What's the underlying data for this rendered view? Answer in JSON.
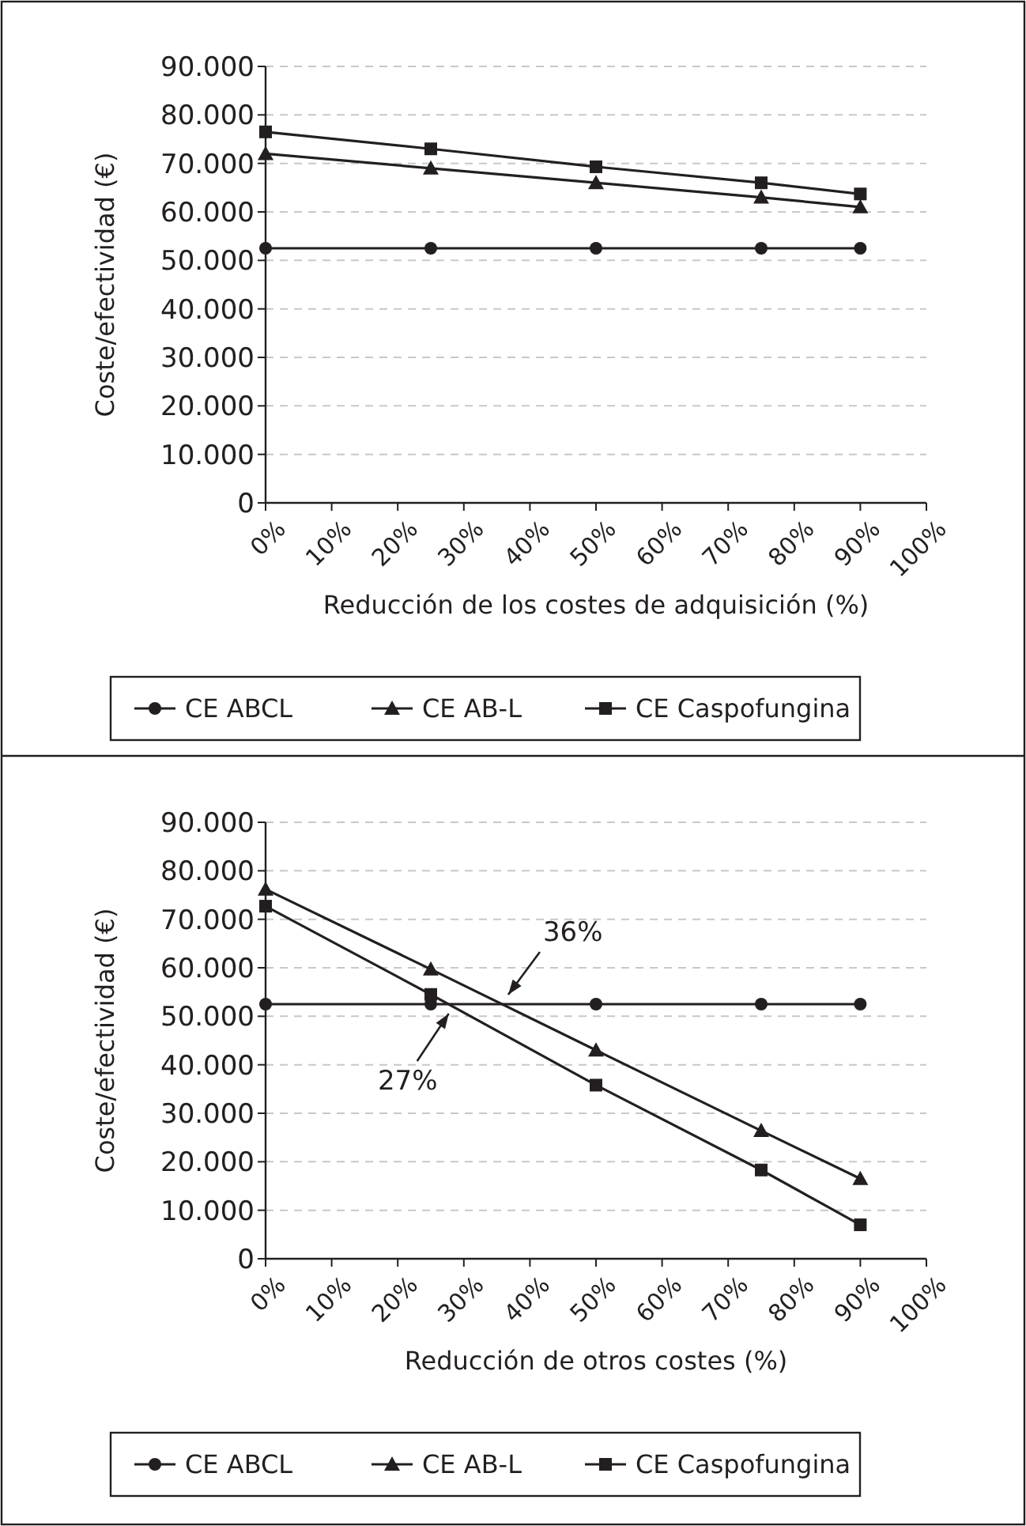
{
  "chart_data": [
    {
      "type": "line",
      "xlabel": "Reducción de los costes de adquisición (%)",
      "ylabel": "Coste/efectividad (€)",
      "x": [
        0,
        25,
        50,
        75,
        90
      ],
      "series": [
        {
          "name": "CE ABCL",
          "color": "#231f20",
          "marker": "circle",
          "values": [
            52500,
            52500,
            52500,
            52500,
            52500
          ]
        },
        {
          "name": "CE AB-L",
          "color": "#231f20",
          "marker": "triangle",
          "values": [
            72000,
            69000,
            66000,
            63000,
            61000
          ]
        },
        {
          "name": "CE Caspofungina",
          "color": "#231f20",
          "marker": "square",
          "values": [
            76500,
            73000,
            69300,
            66000,
            63700
          ]
        }
      ],
      "xlim": [
        0,
        100
      ],
      "xticks": [
        {
          "value": 0,
          "label": "0%"
        },
        {
          "value": 10,
          "label": "10%"
        },
        {
          "value": 20,
          "label": "20%"
        },
        {
          "value": 30,
          "label": "30%"
        },
        {
          "value": 40,
          "label": "40%"
        },
        {
          "value": 50,
          "label": "50%"
        },
        {
          "value": 60,
          "label": "60%"
        },
        {
          "value": 70,
          "label": "70%"
        },
        {
          "value": 80,
          "label": "80%"
        },
        {
          "value": 90,
          "label": "90%"
        },
        {
          "value": 100,
          "label": "100%"
        }
      ],
      "ylim": [
        0,
        90000
      ],
      "yticks": [
        0,
        {
          "value": 10000,
          "label": "10.000"
        },
        {
          "value": 20000,
          "label": "20.000"
        },
        {
          "value": 30000,
          "label": "30.000"
        },
        {
          "value": 40000,
          "label": "40.000"
        },
        {
          "value": 50000,
          "label": "50.000"
        },
        {
          "value": 60000,
          "label": "60.000"
        },
        {
          "value": 70000,
          "label": "70.000"
        },
        {
          "value": 80000,
          "label": "80.000"
        },
        {
          "value": 90000,
          "label": "90.000"
        }
      ],
      "grid": "y",
      "legend": "bottom",
      "line_style": "solid"
    },
    {
      "type": "line",
      "xlabel": "Reducción de otros costes (%)",
      "ylabel": "Coste/efectividad (€)",
      "x": [
        0,
        25,
        50,
        75,
        90
      ],
      "series": [
        {
          "name": "CE ABCL",
          "color": "#231f20",
          "marker": "circle",
          "values": [
            52500,
            52500,
            52500,
            52500,
            52500
          ]
        },
        {
          "name": "CE AB-L",
          "color": "#231f20",
          "marker": "triangle",
          "values": [
            76200,
            59700,
            43000,
            26400,
            16500
          ]
        },
        {
          "name": "CE Caspofungina",
          "color": "#231f20",
          "marker": "square",
          "values": [
            72700,
            54500,
            35800,
            18300,
            7000
          ]
        }
      ],
      "xlim": [
        0,
        100
      ],
      "xticks": [
        {
          "value": 0,
          "label": "0%"
        },
        {
          "value": 10,
          "label": "10%"
        },
        {
          "value": 20,
          "label": "20%"
        },
        {
          "value": 30,
          "label": "30%"
        },
        {
          "value": 40,
          "label": "40%"
        },
        {
          "value": 50,
          "label": "50%"
        },
        {
          "value": 60,
          "label": "60%"
        },
        {
          "value": 70,
          "label": "70%"
        },
        {
          "value": 80,
          "label": "80%"
        },
        {
          "value": 90,
          "label": "90%"
        },
        {
          "value": 100,
          "label": "100%"
        }
      ],
      "ylim": [
        0,
        90000
      ],
      "yticks": [
        0,
        {
          "value": 10000,
          "label": "10.000"
        },
        {
          "value": 20000,
          "label": "20.000"
        },
        {
          "value": 30000,
          "label": "30.000"
        },
        {
          "value": 40000,
          "label": "40.000"
        },
        {
          "value": 50000,
          "label": "50.000"
        },
        {
          "value": 60000,
          "label": "60.000"
        },
        {
          "value": 70000,
          "label": "70.000"
        },
        {
          "value": 80000,
          "label": "80.000"
        },
        {
          "value": 90000,
          "label": "90.000"
        }
      ],
      "grid": "y",
      "legend": "bottom",
      "line_style": "solid",
      "annotations": [
        {
          "text": "36%",
          "x": 36,
          "y": 52500
        },
        {
          "text": "27%",
          "x": 27,
          "y": 52500
        }
      ]
    }
  ]
}
